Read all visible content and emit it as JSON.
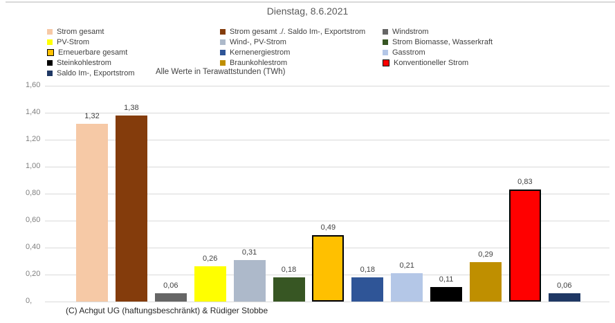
{
  "title": "Dienstag, 8.6.2021",
  "subtitle": "Alle Werte in Terawattstunden (TWh)",
  "footer": "(C) Achgut UG (haftungsbeschränkt) & Rüdiger Stobbe",
  "colors": {
    "gridline": "#d9d9d9",
    "axis_label": "#7f7f7f",
    "value_label": "#404040",
    "title": "#595959"
  },
  "chart_data": {
    "type": "bar",
    "title": "Dienstag, 8.6.2021",
    "note": "Alle Werte in Terawattstunden (TWh)",
    "xlabel": "",
    "ylabel": "",
    "ylim": [
      0,
      1.6
    ],
    "ytick_step": 0.2,
    "ytick_labels": [
      "1,60",
      "1,40",
      "1,20",
      "1,00",
      "0,80",
      "0,60",
      "0,40",
      "0,20",
      "0,"
    ],
    "grid": true,
    "legend_position": "top",
    "legend_columns": 3,
    "series": [
      {
        "name": "Strom gesamt",
        "value": 1.32,
        "label": "1,32",
        "color": "#F6C9A6",
        "border": false
      },
      {
        "name": "Strom gesamt ./. Saldo Im-, Exportstrom",
        "value": 1.38,
        "label": "1,38",
        "color": "#843C0C",
        "border": false
      },
      {
        "name": "Windstrom",
        "value": 0.06,
        "label": "0,06",
        "color": "#666666",
        "border": false
      },
      {
        "name": "PV-Strom",
        "value": 0.26,
        "label": "0,26",
        "color": "#FFFF00",
        "border": false
      },
      {
        "name": "Wind-, PV-Strom",
        "value": 0.31,
        "label": "0,31",
        "color": "#ADB9CA",
        "border": false
      },
      {
        "name": "Strom Biomasse, Wasserkraft",
        "value": 0.18,
        "label": "0,18",
        "color": "#375623",
        "border": false
      },
      {
        "name": "Erneuerbare gesamt",
        "value": 0.49,
        "label": "0,49",
        "color": "#FFC000",
        "border": true
      },
      {
        "name": "Kernenergiestrom",
        "value": 0.18,
        "label": "0,18",
        "color": "#2F5597",
        "border": false
      },
      {
        "name": "Gasstrom",
        "value": 0.21,
        "label": "0,21",
        "color": "#B4C7E7",
        "border": false
      },
      {
        "name": "Steinkohlestrom",
        "value": 0.11,
        "label": "0,11",
        "color": "#000000",
        "border": false
      },
      {
        "name": "Braunkohlestrom",
        "value": 0.29,
        "label": "0,29",
        "color": "#BF8F00",
        "border": false
      },
      {
        "name": "Konventioneller Strom",
        "value": 0.83,
        "label": "0,83",
        "color": "#FF0000",
        "border": true
      },
      {
        "name": "Saldo Im-, Exportstrom",
        "value": 0.06,
        "label": "0,06",
        "color": "#1F3864",
        "border": false
      }
    ]
  }
}
